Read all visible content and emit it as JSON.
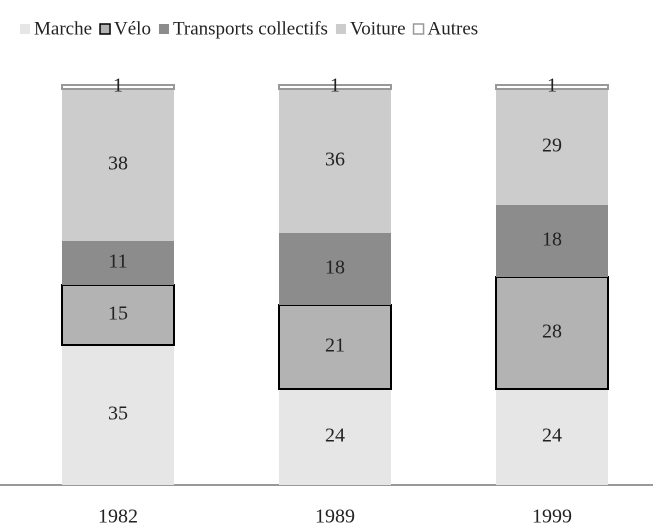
{
  "chart_data": {
    "type": "stacked_bar",
    "categories": [
      "1982",
      "1989",
      "1999"
    ],
    "series": [
      {
        "name": "Marche",
        "color": "#e6e6e6",
        "values": [
          35,
          24,
          24
        ]
      },
      {
        "name": "Vélo",
        "color": "#b3b3b3",
        "edgecolor": "#000000",
        "values": [
          15,
          21,
          28
        ]
      },
      {
        "name": "Transports collectifs",
        "color": "#8c8c8c",
        "values": [
          11,
          18,
          18
        ]
      },
      {
        "name": "Voiture",
        "color": "#cccccc",
        "values": [
          38,
          36,
          29
        ]
      },
      {
        "name": "Autres",
        "color": "#ffffff",
        "edgecolor": "#999999",
        "values": [
          1,
          1,
          1
        ]
      }
    ],
    "ylim": [
      0,
      100
    ],
    "legend": "top"
  }
}
